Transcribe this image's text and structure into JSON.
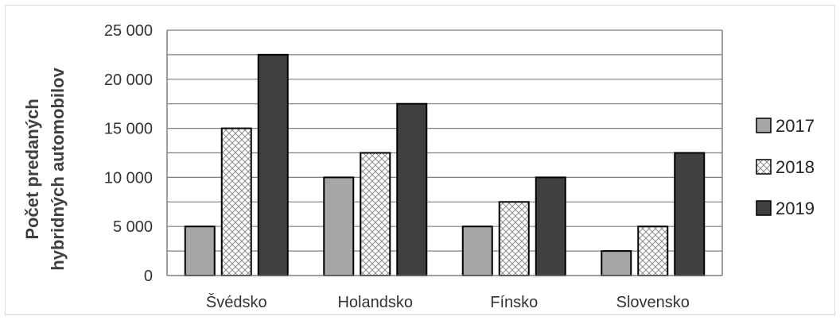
{
  "chart_data": {
    "type": "bar",
    "title": "",
    "xlabel": "",
    "ylabel_lines": [
      "Počet predaných",
      "hybridných automobilov"
    ],
    "categories": [
      "Švédsko",
      "Holandsko",
      "Fínsko",
      "Slovensko"
    ],
    "series": [
      {
        "name": "2017",
        "values": [
          5000,
          10000,
          5000,
          2500
        ],
        "fill": "#a6a6a6",
        "pattern": "solid"
      },
      {
        "name": "2018",
        "values": [
          15000,
          12500,
          7500,
          5000
        ],
        "fill": "#ffffff",
        "pattern": "crosshatch"
      },
      {
        "name": "2019",
        "values": [
          22500,
          17500,
          10000,
          12500
        ],
        "fill": "#404040",
        "pattern": "solid"
      }
    ],
    "ylim": [
      0,
      25000
    ],
    "yticks": [
      0,
      5000,
      10000,
      15000,
      20000,
      25000
    ],
    "ytick_labels": [
      "0",
      "5 000",
      "10 000",
      "15 000",
      "20 000",
      "25 000"
    ],
    "grid": true,
    "legend_position": "right"
  }
}
